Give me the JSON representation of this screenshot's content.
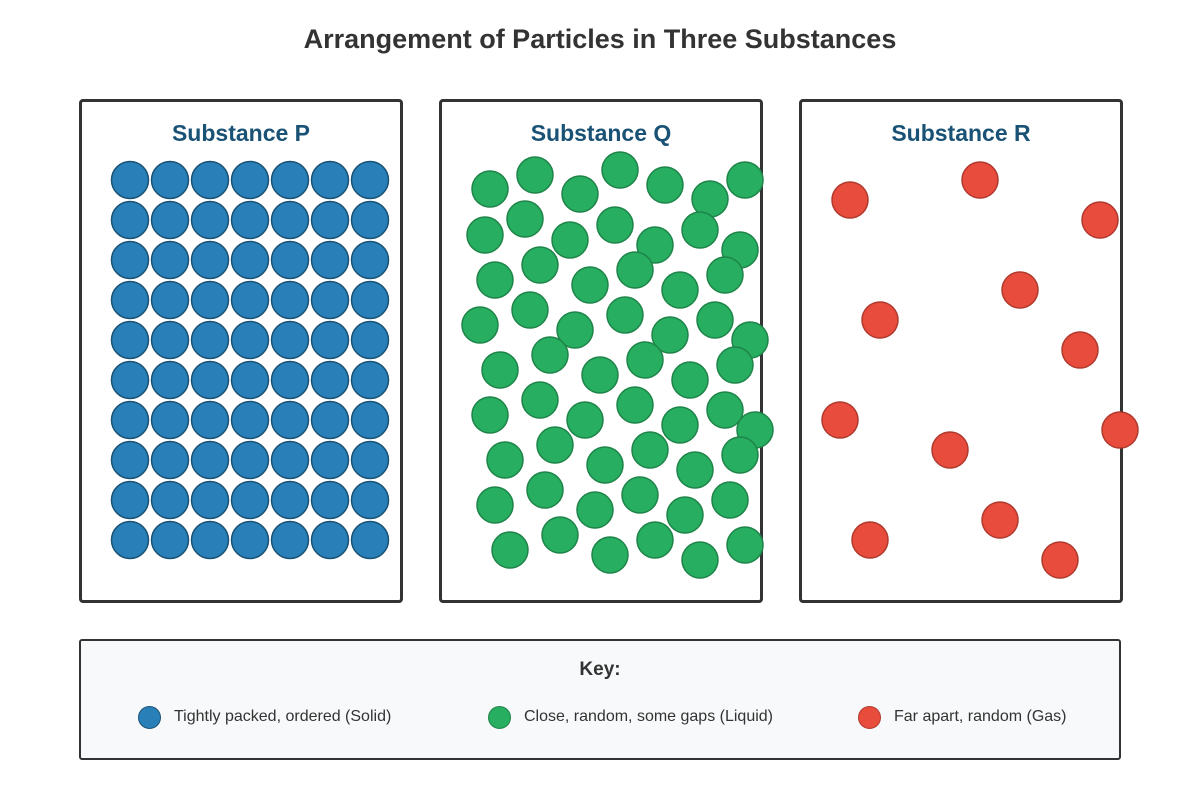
{
  "title": "Arrangement of Particles in Three Substances",
  "colors": {
    "solid_fill": "#2980b9",
    "solid_stroke": "#1a5276",
    "liquid_fill": "#27ae60",
    "liquid_stroke": "#1e8449",
    "gas_fill": "#e74c3c",
    "gas_stroke": "#b03a2e",
    "panel_title": "#1a5276"
  },
  "panels": [
    {
      "name": "Substance P",
      "state": "solid"
    },
    {
      "name": "Substance Q",
      "state": "liquid"
    },
    {
      "name": "Substance R",
      "state": "gas"
    }
  ],
  "key": {
    "title": "Key:",
    "items": [
      {
        "label": "Tightly packed, ordered (Solid)",
        "state": "solid"
      },
      {
        "label": "Close, random, some gaps (Liquid)",
        "state": "liquid"
      },
      {
        "label": "Far apart, random (Gas)",
        "state": "gas"
      }
    ]
  }
}
